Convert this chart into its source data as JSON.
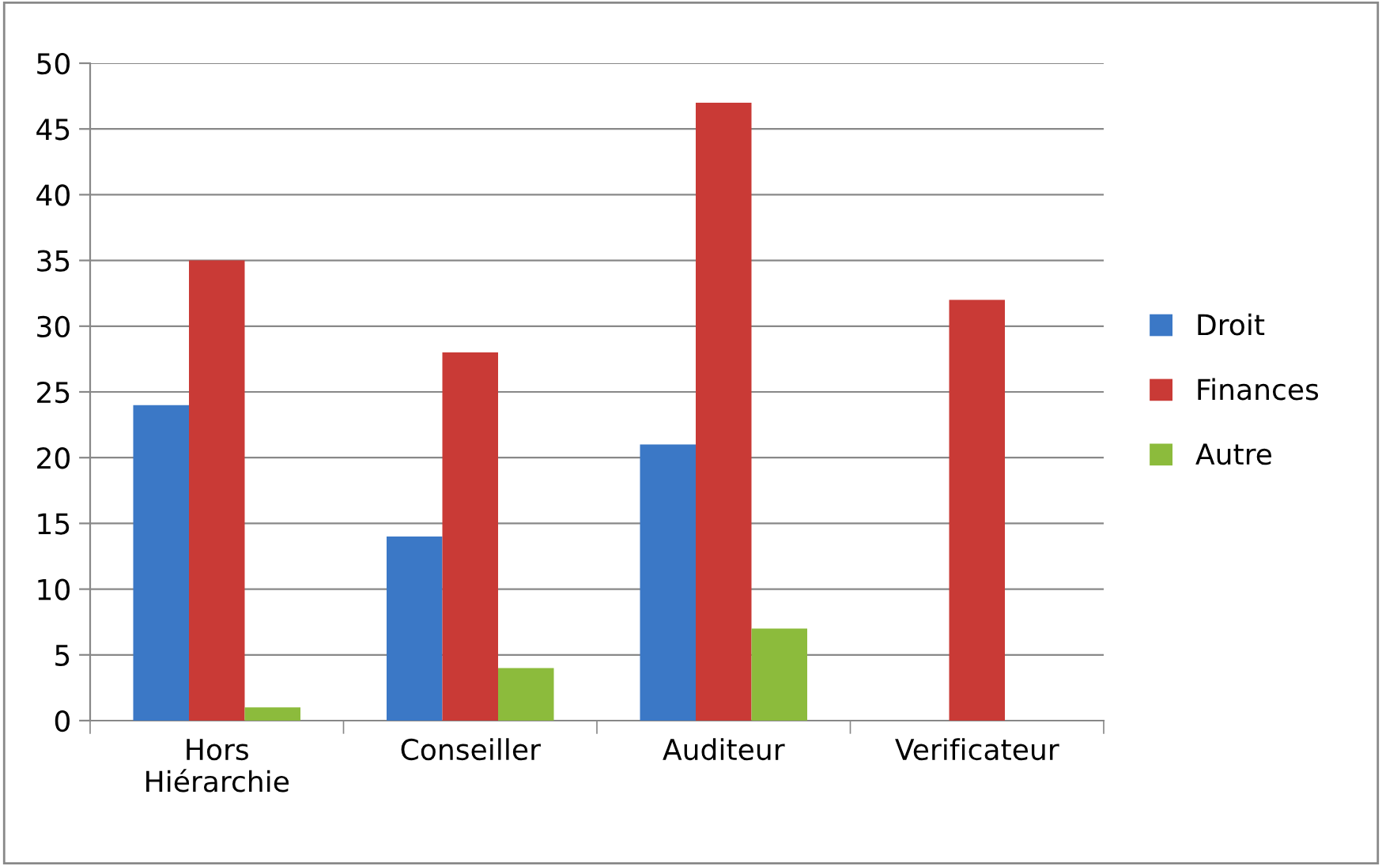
{
  "chart_data": {
    "type": "bar",
    "categories": [
      "Hors\nHiérarchie",
      "Conseiller",
      "Auditeur",
      "Verificateur"
    ],
    "series": [
      {
        "name": "Droit",
        "color": "#3b78c6",
        "values": [
          24,
          14,
          21,
          null
        ]
      },
      {
        "name": "Finances",
        "color": "#c93a36",
        "values": [
          35,
          28,
          47,
          32
        ]
      },
      {
        "name": "Autre",
        "color": "#8cbb3c",
        "values": [
          1,
          4,
          7,
          null
        ]
      }
    ],
    "ylim": [
      0,
      50
    ],
    "yticks": [
      0,
      5,
      10,
      15,
      20,
      25,
      30,
      35,
      40,
      45,
      50
    ],
    "grid": "y",
    "legend": "right"
  }
}
